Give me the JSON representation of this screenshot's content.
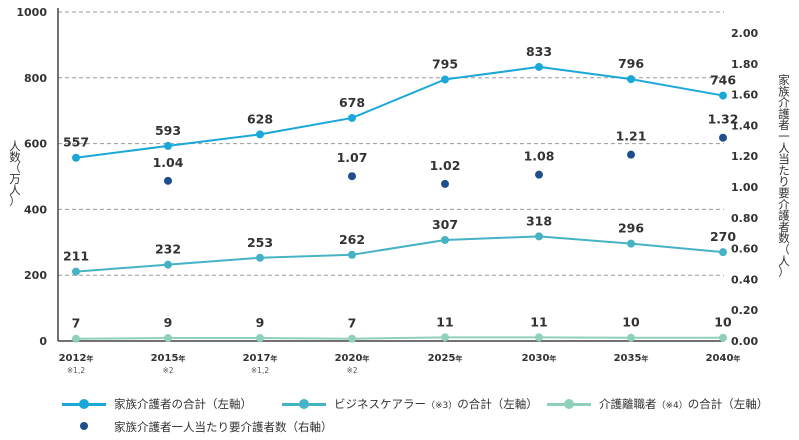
{
  "chart_data": {
    "type": "line",
    "categories": [
      "2012",
      "2015",
      "2017",
      "2020",
      "2025",
      "2030",
      "2035",
      "2040"
    ],
    "category_suffix": "年",
    "category_notes": [
      "※1,2",
      "※2",
      "※1,2",
      "※2",
      "",
      "",
      "",
      ""
    ],
    "ylabel_left": "人数（万人）",
    "ylabel_right": "家族介護者一人当たり要介護者数（人）",
    "left_axis": {
      "min": 0,
      "max": 1000,
      "ticks": [
        "0",
        "200",
        "400",
        "600",
        "800",
        "1000"
      ]
    },
    "right_axis": {
      "min": 0,
      "max": 2.0,
      "ticks": [
        "0.00",
        "0.20",
        "0.40",
        "0.60",
        "0.80",
        "1.00",
        "1.20",
        "1.40",
        "1.60",
        "1.80",
        "2.00"
      ]
    },
    "grid": true,
    "series": [
      {
        "name": "家族介護者の合計（左軸）",
        "axis": "left",
        "style": "line",
        "color": "#1aa8d8",
        "values": [
          557,
          593,
          628,
          678,
          795,
          833,
          796,
          746
        ],
        "labels": [
          "557",
          "593",
          "628",
          "678",
          "795",
          "833",
          "796",
          "746"
        ]
      },
      {
        "name": "ビジネスケアラー（※3）の合計（左軸）",
        "axis": "left",
        "style": "line",
        "color": "#45b3c4",
        "values": [
          211,
          232,
          253,
          262,
          307,
          318,
          296,
          270
        ],
        "labels": [
          "211",
          "232",
          "253",
          "262",
          "307",
          "318",
          "296",
          "270"
        ]
      },
      {
        "name": "介護離職者（※4）の合計（左軸）",
        "axis": "left",
        "style": "line",
        "color": "#8fd0bc",
        "values": [
          7,
          9,
          9,
          7,
          11,
          11,
          10,
          10
        ],
        "labels": [
          "7",
          "9",
          "9",
          "7",
          "11",
          "11",
          "10",
          "10"
        ]
      },
      {
        "name": "家族介護者一人当たり要介護者数（右軸）",
        "axis": "right",
        "style": "dot",
        "color": "#1f4e8c",
        "values": [
          null,
          1.04,
          null,
          1.07,
          1.02,
          1.08,
          1.21,
          1.32
        ],
        "labels": [
          "",
          "1.04",
          "",
          "1.07",
          "1.02",
          "1.08",
          "1.21",
          "1.32"
        ]
      }
    ]
  },
  "legend": [
    {
      "text": "家族介護者の合計（左軸）",
      "note": "",
      "text_after": ""
    },
    {
      "text": "ビジネスケアラー",
      "note": "（※3）",
      "text_after": "の合計（左軸）"
    },
    {
      "text": "介護離職者",
      "note": "（※4）",
      "text_after": "の合計（左軸）"
    },
    {
      "text": "家族介護者一人当たり要介護者数（右軸）",
      "note": "",
      "text_after": ""
    }
  ]
}
